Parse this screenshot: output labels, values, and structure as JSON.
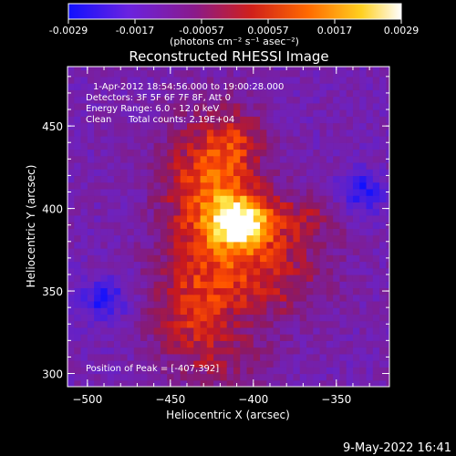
{
  "chart_data": {
    "type": "heatmap",
    "title": "Reconstructed RHESSI Image",
    "xlabel": "Heliocentric X (arcsec)",
    "ylabel": "Heliocentric Y (arcsec)",
    "xlim": [
      -512,
      -318
    ],
    "ylim": [
      292,
      486
    ],
    "x_ticks": [
      -500,
      -450,
      -400,
      -350
    ],
    "y_ticks": [
      300,
      350,
      400,
      450
    ],
    "colorbar": {
      "range": [
        -0.0029,
        0.0029
      ],
      "ticks": [
        "-0.0029",
        "-0.0017",
        "-0.00057",
        "0.00057",
        "0.0017",
        "0.0029"
      ],
      "unit_label": "(photons cm⁻² s⁻¹ asec⁻²)",
      "colors": [
        "#1010ff",
        "#7a1fd6",
        "#a11b7a",
        "#e02010",
        "#ff9a00",
        "#ffff80",
        "#ffffff"
      ]
    },
    "annotations": {
      "time_range": "1-Apr-2012 18:54:56.000 to 19:00:28.000",
      "detectors": "Detectors: 3F 5F 6F 7F 8F, Att 0",
      "energy": "Energy Range: 6.0 - 12.0 keV",
      "method": "Clean",
      "counts": "Total counts: 2.19E+04",
      "peak": "Position of Peak = [-407,392]"
    },
    "peak": [
      -407,
      392
    ],
    "footer": "9-May-2022 16:41"
  }
}
